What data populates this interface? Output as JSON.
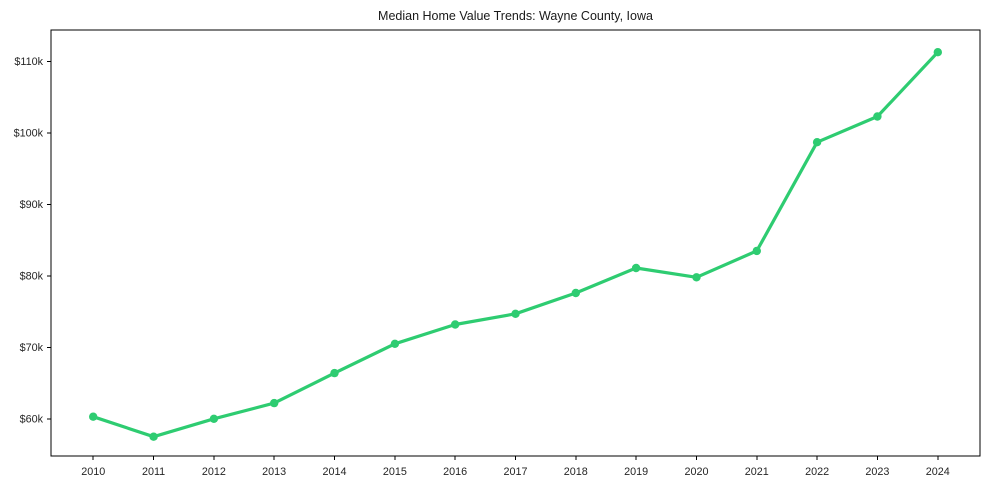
{
  "page": {
    "background": "#ffffff"
  },
  "chart_data": {
    "type": "line",
    "title": "Median Home Value Trends: Wayne County, Iowa",
    "x": [
      2010,
      2011,
      2012,
      2013,
      2014,
      2015,
      2016,
      2017,
      2018,
      2019,
      2020,
      2021,
      2022,
      2023,
      2024
    ],
    "values": [
      60300,
      57500,
      60000,
      62200,
      66400,
      70500,
      73200,
      74700,
      77600,
      81100,
      79800,
      83500,
      98700,
      102300,
      111300
    ],
    "x_tick_labels": [
      "2010",
      "2011",
      "2012",
      "2013",
      "2014",
      "2015",
      "2016",
      "2017",
      "2018",
      "2019",
      "2020",
      "2021",
      "2022",
      "2023",
      "2024"
    ],
    "y_ticks": [
      {
        "value": 60000,
        "label": "$60k"
      },
      {
        "value": 70000,
        "label": "$70k"
      },
      {
        "value": 80000,
        "label": "$80k"
      },
      {
        "value": 90000,
        "label": "$90k"
      },
      {
        "value": 100000,
        "label": "$100k"
      },
      {
        "value": 110000,
        "label": "$110k"
      }
    ],
    "xlim": [
      2009.3,
      2024.7
    ],
    "ylim": [
      54800,
      114400
    ],
    "grid": false,
    "legend": false,
    "line_color": "#2ecc71",
    "marker": "circle",
    "marker_radius": 4.2,
    "line_width": 3.2,
    "axis_color": "#000000",
    "text_color": "#262626"
  }
}
